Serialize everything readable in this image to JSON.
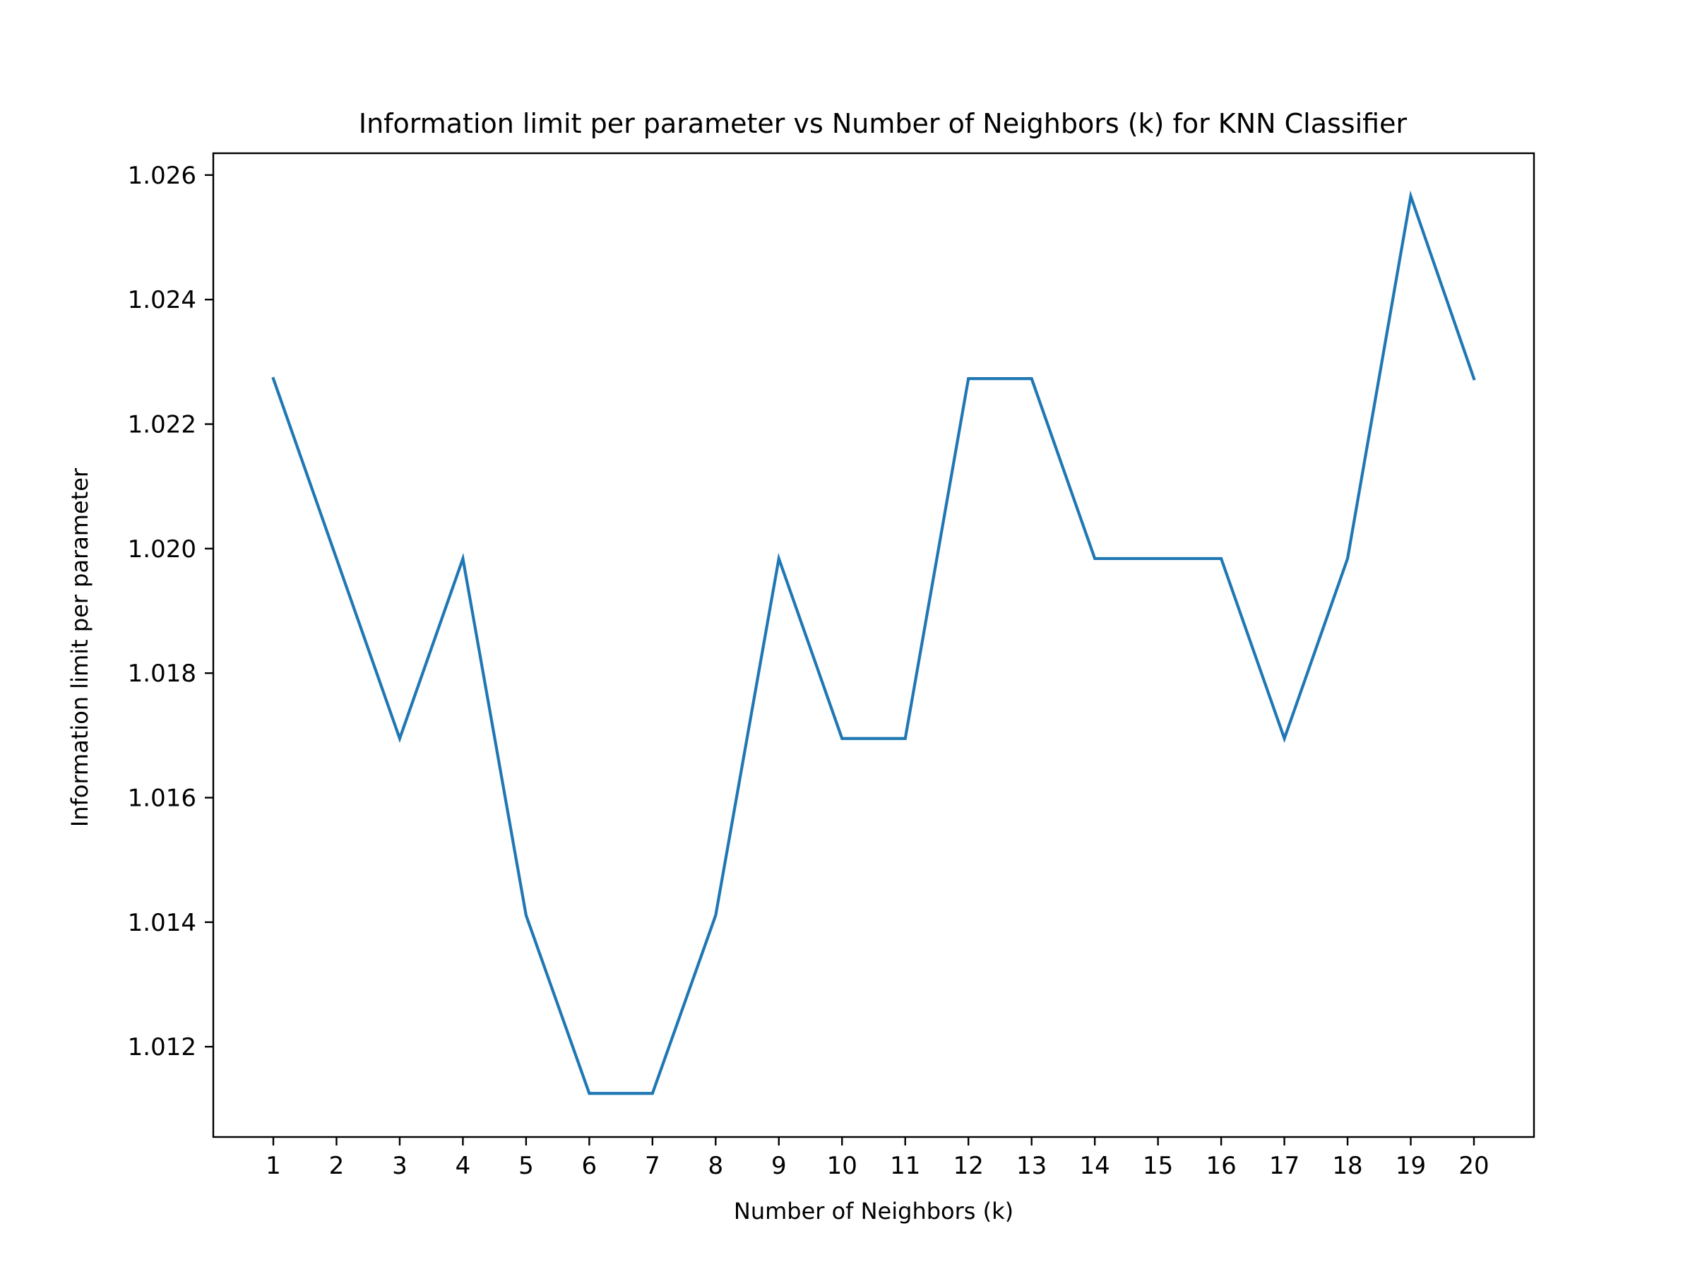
{
  "chart_data": {
    "type": "line",
    "title": "Information limit per parameter vs Number of Neighbors (k) for KNN Classifier",
    "xlabel": "Number of Neighbors (k)",
    "ylabel": "Information limit per parameter",
    "x": [
      1,
      2,
      3,
      4,
      5,
      6,
      7,
      8,
      9,
      10,
      11,
      12,
      13,
      14,
      15,
      16,
      17,
      18,
      19,
      20
    ],
    "x_tick_labels": [
      "1",
      "2",
      "3",
      "4",
      "5",
      "6",
      "7",
      "8",
      "9",
      "10",
      "11",
      "12",
      "13",
      "14",
      "15",
      "16",
      "17",
      "18",
      "19",
      "20"
    ],
    "y_ticks": [
      1.012,
      1.014,
      1.016,
      1.018,
      1.02,
      1.022,
      1.024,
      1.026
    ],
    "y_tick_labels": [
      "1.012",
      "1.014",
      "1.016",
      "1.018",
      "1.020",
      "1.022",
      "1.024",
      "1.026"
    ],
    "xlim": [
      0.05,
      20.95
    ],
    "ylim": [
      1.01055,
      1.02635
    ],
    "grid": false,
    "series": [
      {
        "color": "#1f77b4",
        "values": [
          1.02273,
          1.01984,
          1.01695,
          1.01984,
          1.01411,
          1.01125,
          1.01125,
          1.01411,
          1.01984,
          1.01695,
          1.01695,
          1.02273,
          1.02273,
          1.01984,
          1.01984,
          1.01984,
          1.01695,
          1.01984,
          1.02566,
          1.02273
        ]
      }
    ]
  }
}
